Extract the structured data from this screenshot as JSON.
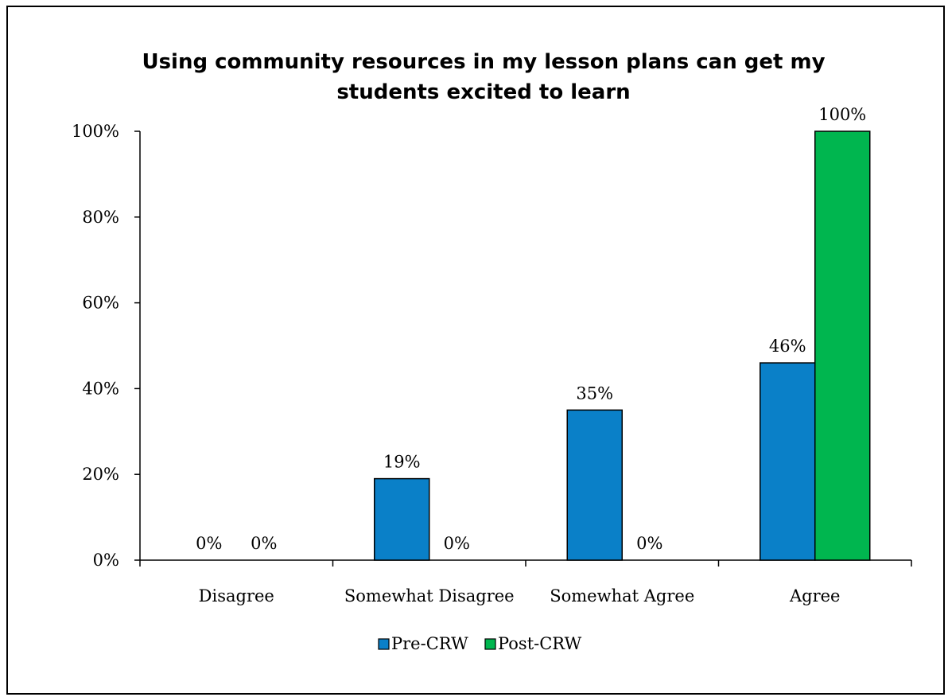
{
  "chart_data": {
    "type": "bar",
    "title_lines": [
      "Using community resources in my lesson plans can get my",
      "students excited to learn"
    ],
    "categories": [
      "Disagree",
      "Somewhat Disagree",
      "Somewhat Agree",
      "Agree"
    ],
    "series": [
      {
        "name": "Pre-CRW",
        "color": "#0a80c8",
        "values": [
          0,
          19,
          35,
          46
        ],
        "labels": [
          "0%",
          "19%",
          "35%",
          "46%"
        ]
      },
      {
        "name": "Post-CRW",
        "color": "#00b64f",
        "values": [
          0,
          0,
          0,
          100
        ],
        "labels": [
          "0%",
          "0%",
          "0%",
          "100%"
        ]
      }
    ],
    "ylim": [
      0,
      100
    ],
    "yticks": [
      0,
      20,
      40,
      60,
      80,
      100
    ],
    "ytick_labels": [
      "0%",
      "20%",
      "40%",
      "60%",
      "80%",
      "100%"
    ],
    "xlabel": "",
    "ylabel": "",
    "grid": false,
    "legend_position": "bottom"
  }
}
